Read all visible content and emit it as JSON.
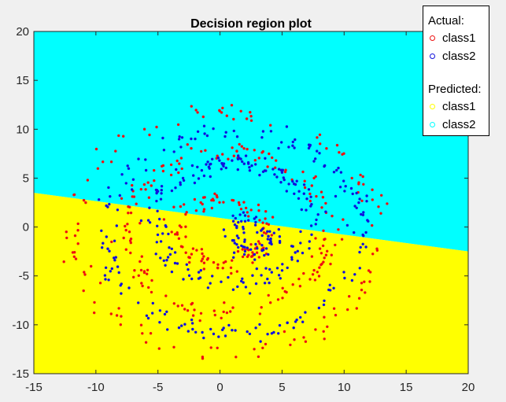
{
  "chart_data": {
    "type": "scatter",
    "title": "Decision region plot",
    "xlim": [
      -15,
      20
    ],
    "ylim": [
      -15,
      20
    ],
    "x_ticks": [
      -15,
      -10,
      -5,
      0,
      5,
      10,
      15,
      20
    ],
    "y_ticks": [
      -15,
      -10,
      -5,
      0,
      5,
      10,
      15,
      20
    ],
    "grid": false,
    "legend_position": "top-right",
    "decision_boundary": {
      "description_line": [
        [
          -15,
          3.5
        ],
        [
          20,
          -2.5
        ]
      ],
      "above_region": "class2",
      "below_region": "class1"
    },
    "regions": [
      {
        "name": "class1",
        "color": "#ffff00"
      },
      {
        "name": "class2",
        "color": "#00ffff"
      }
    ],
    "series": [
      {
        "name": "class1",
        "color": "#ee1111",
        "structure": "rings",
        "rings": [
          {
            "cx": 0,
            "cy": -0.5,
            "r": 3.5,
            "count": 110
          },
          {
            "cx": 0.5,
            "cy": -0.5,
            "r": 8.2,
            "count": 160
          },
          {
            "cx": 0.5,
            "cy": -0.5,
            "r": 12.3,
            "count": 120
          }
        ]
      },
      {
        "name": "class2",
        "color": "#1111dd",
        "structure": "rings",
        "rings": [
          {
            "cx": 2.5,
            "cy": -1.0,
            "r": 1.6,
            "count": 70
          },
          {
            "cx": 1.0,
            "cy": 0.5,
            "r": 6.2,
            "count": 170
          },
          {
            "cx": 1.0,
            "cy": -0.5,
            "r": 10.3,
            "count": 170
          }
        ]
      }
    ]
  },
  "legend": {
    "actual_label": "Actual:",
    "predicted_label": "Predicted:",
    "actual": [
      {
        "label": "class1",
        "marker_color": "#ee1111"
      },
      {
        "label": "class2",
        "marker_color": "#1111dd"
      }
    ],
    "predicted": [
      {
        "label": "class1",
        "marker_color": "#ffff00"
      },
      {
        "label": "class2",
        "marker_color": "#00ffff"
      }
    ]
  }
}
